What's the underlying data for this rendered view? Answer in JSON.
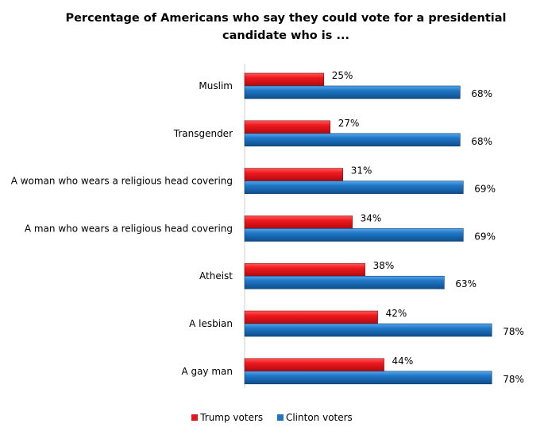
{
  "chart_data": {
    "type": "bar",
    "orientation": "horizontal",
    "title": "Percentage of Americans who say they could vote for a presidential candidate who is ...",
    "categories": [
      "Muslim",
      "Transgender",
      "A woman who wears a religious head covering",
      "A man who wears a religious head covering",
      "Atheist",
      "A lesbian",
      "A gay man"
    ],
    "series": [
      {
        "name": "Trump voters",
        "color": "#e8141b",
        "values": [
          25,
          27,
          31,
          34,
          38,
          42,
          44
        ]
      },
      {
        "name": "Clinton voters",
        "color": "#1f73c2",
        "values": [
          68,
          68,
          69,
          69,
          63,
          78,
          78
        ]
      }
    ],
    "value_suffix": "%",
    "xlim": [
      0,
      100
    ],
    "grid": false,
    "legend": "bottom"
  }
}
